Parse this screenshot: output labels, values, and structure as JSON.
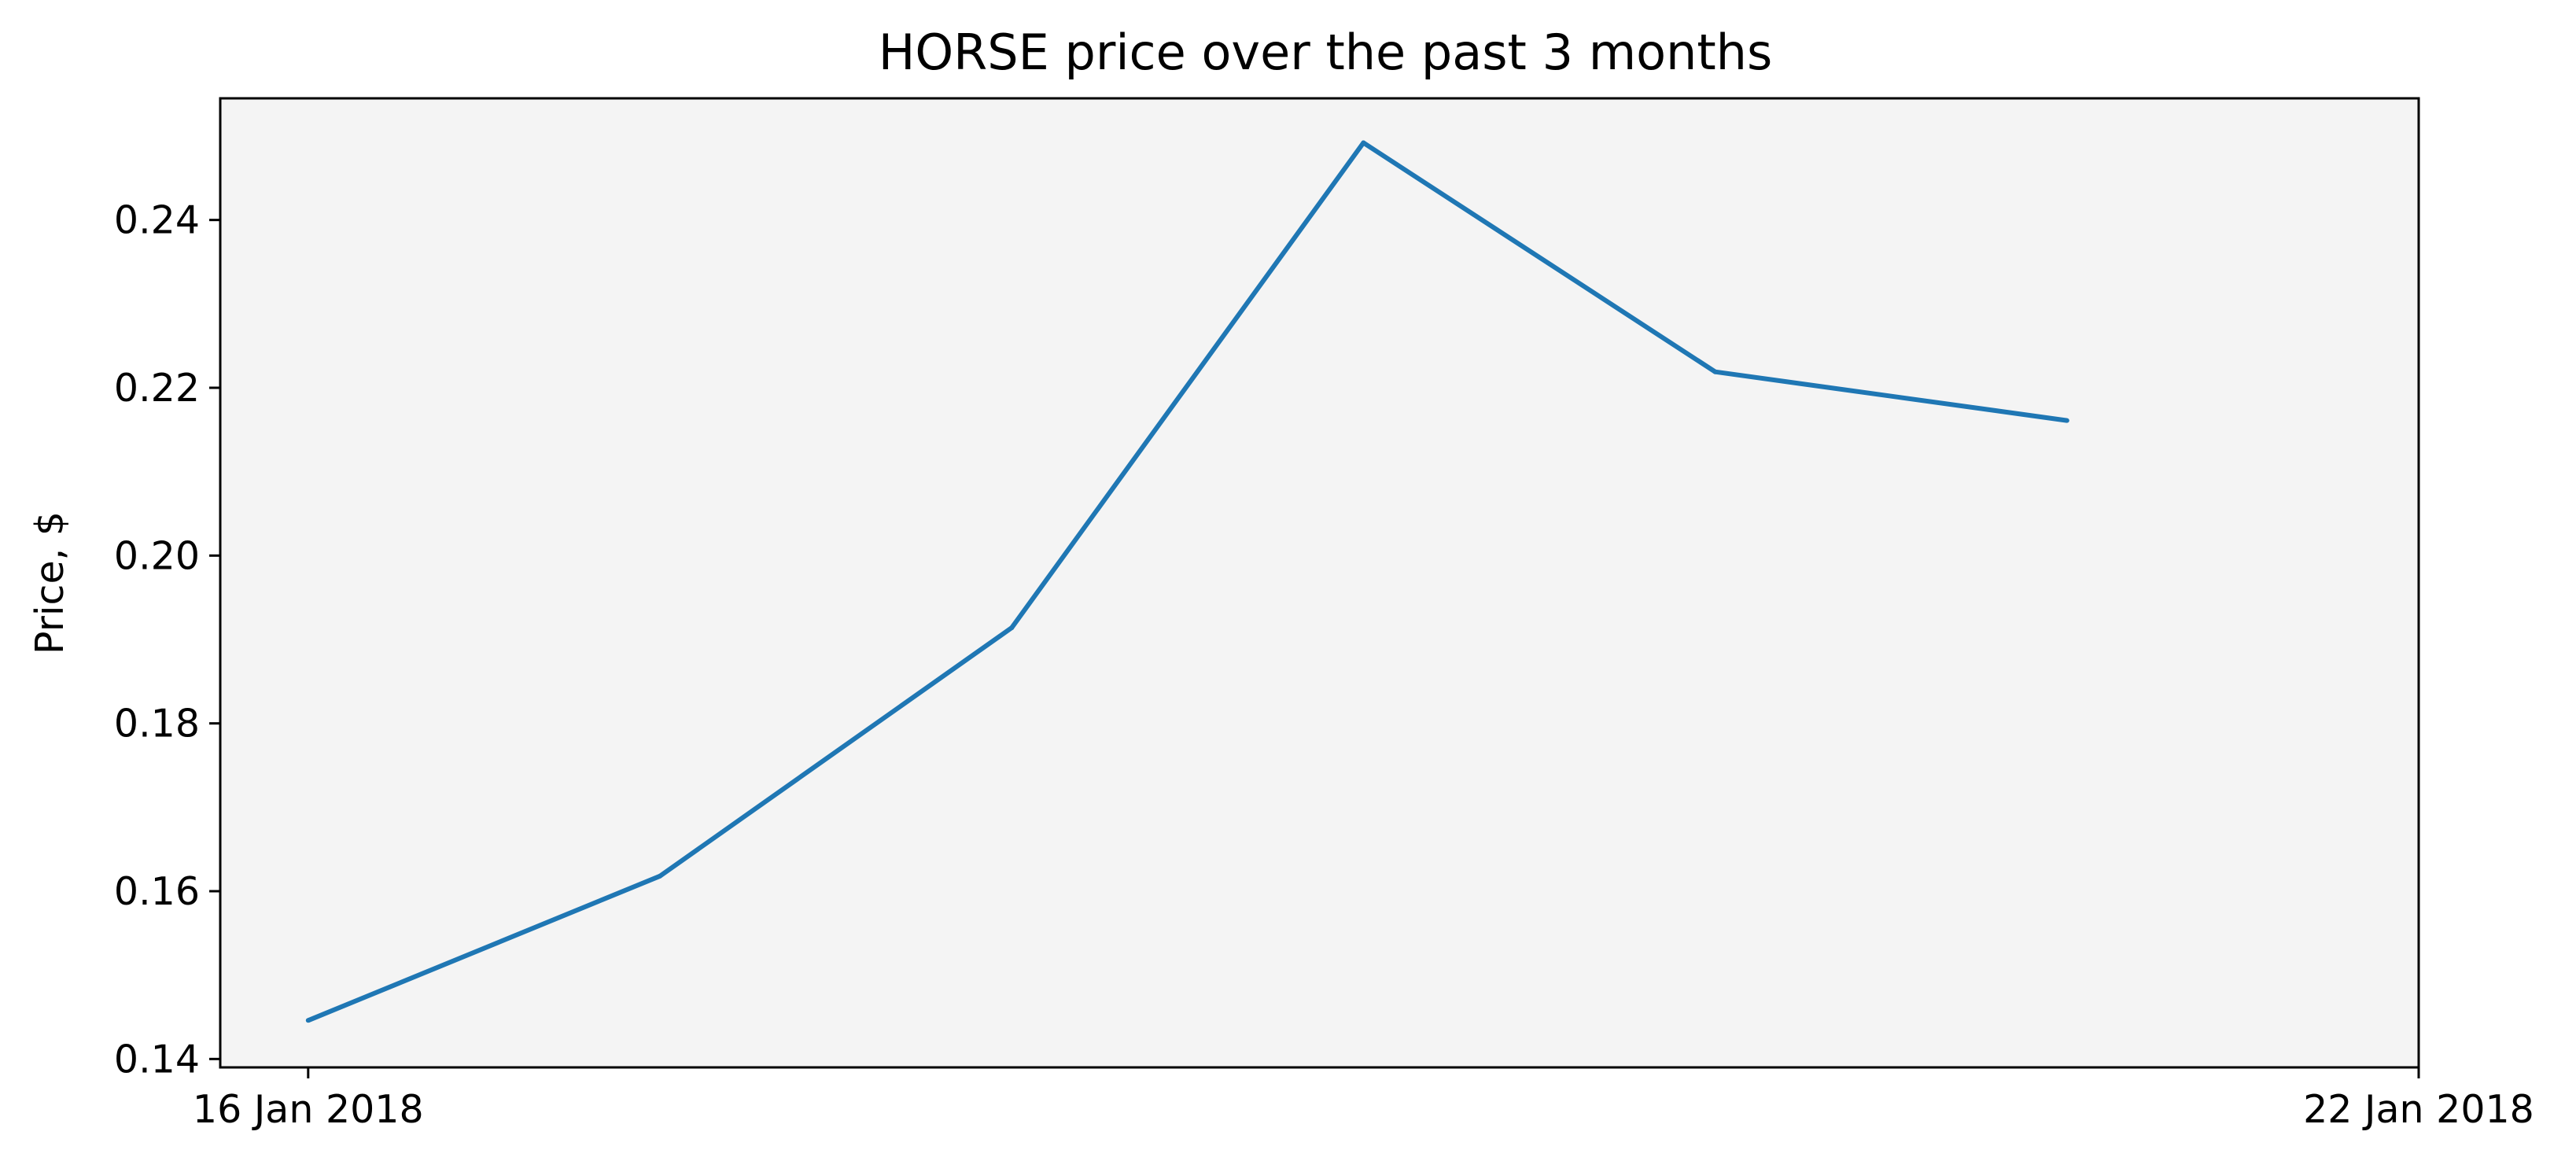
{
  "chart_data": {
    "type": "line",
    "title": "HORSE price over the past 3 months",
    "xlabel": "",
    "ylabel": "Price, $",
    "x": [
      "16 Jan 2018",
      "17 Jan 2018",
      "18 Jan 2018",
      "19 Jan 2018",
      "20 Jan 2018",
      "21 Jan 2018"
    ],
    "xlim": [
      "15.75 Jan 2018",
      "22 Jan 2018"
    ],
    "x_ticks": [
      "16 Jan 2018",
      "22 Jan 2018"
    ],
    "ylim": [
      0.139,
      0.2545
    ],
    "y_ticks": [
      "0.14",
      "0.16",
      "0.18",
      "0.20",
      "0.22",
      "0.24"
    ],
    "series": [
      {
        "values": [
          0.1446,
          0.1618,
          0.1914,
          0.2492,
          0.2219,
          0.2161
        ],
        "color": "#1f77b4"
      }
    ],
    "plot_background": "#f4f4f4",
    "grid": false,
    "legend": "none"
  }
}
